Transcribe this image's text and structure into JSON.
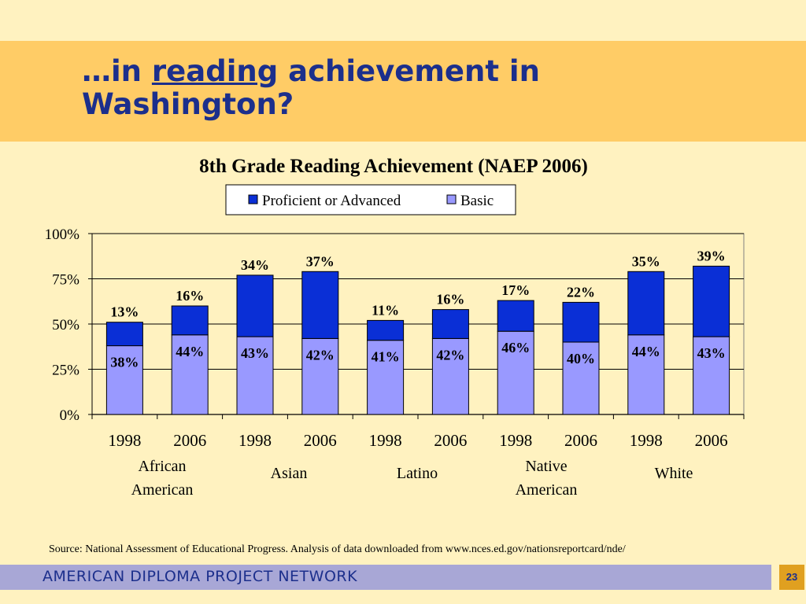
{
  "slide": {
    "title_prefix": "…in ",
    "title_underlined": "reading",
    "title_suffix": " achievement in",
    "title_line2": "Washington?",
    "source": "Source: National Assessment of Educational Progress.  Analysis of data downloaded from www.nces.ed.gov/nationsreportcard/nde/",
    "footer": "AMERICAN DIPLOMA PROJECT NETWORK",
    "page_number": "23"
  },
  "chart_data": {
    "type": "bar",
    "stacked": true,
    "title": "8th Grade Reading Achievement  (NAEP 2006)",
    "categories": [
      "1998",
      "2006",
      "1998",
      "2006",
      "1998",
      "2006",
      "1998",
      "2006",
      "1998",
      "2006"
    ],
    "groups": [
      {
        "label": "African American",
        "lines": [
          "African",
          "American"
        ]
      },
      {
        "label": "Asian",
        "lines": [
          "Asian"
        ]
      },
      {
        "label": "Latino",
        "lines": [
          "Latino"
        ]
      },
      {
        "label": "Native American",
        "lines": [
          "Native",
          "American"
        ]
      },
      {
        "label": "White",
        "lines": [
          "White"
        ]
      }
    ],
    "series": [
      {
        "name": "Basic",
        "color": "#9999FF",
        "values": [
          38,
          44,
          43,
          42,
          41,
          42,
          46,
          40,
          44,
          43
        ],
        "labels": [
          "38%",
          "44%",
          "43%",
          "42%",
          "41%",
          "42%",
          "46%",
          "40%",
          "44%",
          "43%"
        ]
      },
      {
        "name": "Proficient or Advanced",
        "color": "#0A2FD6",
        "values": [
          13,
          16,
          34,
          37,
          11,
          16,
          17,
          22,
          35,
          39
        ],
        "labels": [
          "13%",
          "16%",
          "34%",
          "37%",
          "11%",
          "16%",
          "17%",
          "22%",
          "35%",
          "39%"
        ]
      }
    ],
    "legend": [
      {
        "name": "Proficient or Advanced",
        "color": "#0A2FD6"
      },
      {
        "name": "Basic",
        "color": "#9999FF"
      }
    ],
    "yticks": [
      0,
      25,
      50,
      75,
      100
    ],
    "ytick_labels": [
      "0%",
      "25%",
      "50%",
      "75%",
      "100%"
    ],
    "ylim": [
      0,
      100
    ],
    "legend_position": "top-center",
    "grid": true
  }
}
